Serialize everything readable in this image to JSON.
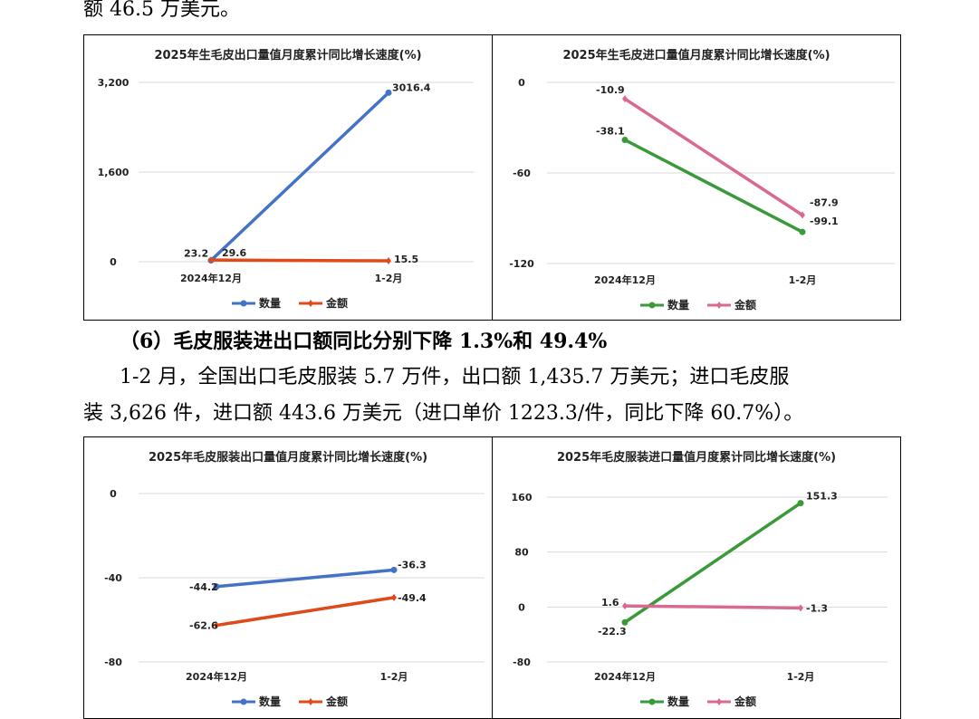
{
  "text": {
    "top_line": "额 46.5 万美元。",
    "heading6": "（6）毛皮服装进出口额同比分别下降 1.3%和 49.4%",
    "para_line1": "1-2 月，全国出口毛皮服装 5.7 万件，出口额 1,435.7 万美元；进口毛皮服",
    "para_line2": "装 3,626 件，进口额 443.6 万美元（进口单价 1223.3/件，同比下降 60.7%）。"
  },
  "chart_data": [
    {
      "type": "line",
      "title": "2025年生毛皮出口量值月度累计同比增长速度(%)",
      "categories": [
        "2024年12月",
        "1-2月"
      ],
      "ylim": [
        0,
        3200
      ],
      "yticks": [
        0,
        1600,
        3200
      ],
      "ytick_labels": [
        "0",
        "1,600",
        "3,200"
      ],
      "grid": true,
      "legend": "bottom",
      "series": [
        {
          "name": "数量",
          "values": [
            23.2,
            3016.4
          ],
          "labels": [
            "23.2",
            "3016.4"
          ],
          "color": "#4472C4"
        },
        {
          "name": "金额",
          "values": [
            29.6,
            15.5
          ],
          "labels": [
            "29.6",
            "15.5"
          ],
          "color": "#E04A1A"
        }
      ]
    },
    {
      "type": "line",
      "title": "2025年生毛皮进口量值月度累计同比增长速度(%)",
      "categories": [
        "2024年12月",
        "1-2月"
      ],
      "ylim": [
        -120,
        0
      ],
      "yticks": [
        -120,
        -60,
        0
      ],
      "ytick_labels": [
        "-120",
        "-60",
        "0"
      ],
      "grid": true,
      "legend": "bottom",
      "series": [
        {
          "name": "数量",
          "values": [
            -38.1,
            -99.1
          ],
          "labels": [
            "-38.1",
            "-99.1"
          ],
          "color": "#3A9A3A"
        },
        {
          "name": "金额",
          "values": [
            -10.9,
            -87.9
          ],
          "labels": [
            "-10.9",
            "-87.9"
          ],
          "color": "#D9698F"
        }
      ]
    },
    {
      "type": "line",
      "title": "2025年毛皮服装出口量值月度累计同比增长速度(%)",
      "categories": [
        "2024年12月",
        "1-2月"
      ],
      "ylim": [
        -80,
        0
      ],
      "yticks": [
        -80,
        -40,
        0
      ],
      "ytick_labels": [
        "-80",
        "-40",
        "0"
      ],
      "grid": true,
      "legend": "bottom",
      "series": [
        {
          "name": "数量",
          "values": [
            -44.2,
            -36.3
          ],
          "labels": [
            "-44.2",
            "-36.3"
          ],
          "color": "#4472C4"
        },
        {
          "name": "金额",
          "values": [
            -62.6,
            -49.4
          ],
          "labels": [
            "-62.6",
            "-49.4"
          ],
          "color": "#E04A1A"
        }
      ]
    },
    {
      "type": "line",
      "title": "2025年毛皮服装进口量值月度累计同比增长速度(%)",
      "categories": [
        "2024年12月",
        "1-2月"
      ],
      "ylim": [
        -80,
        160
      ],
      "yticks": [
        -80,
        0,
        80,
        160
      ],
      "ytick_labels": [
        "-80",
        "0",
        "80",
        "160"
      ],
      "grid": true,
      "legend": "bottom",
      "series": [
        {
          "name": "数量",
          "values": [
            -22.3,
            151.3
          ],
          "labels": [
            "-22.3",
            "151.3"
          ],
          "color": "#3A9A3A"
        },
        {
          "name": "金额",
          "values": [
            1.6,
            -1.3
          ],
          "labels": [
            "1.6",
            "-1.3"
          ],
          "color": "#D9698F"
        }
      ]
    }
  ]
}
